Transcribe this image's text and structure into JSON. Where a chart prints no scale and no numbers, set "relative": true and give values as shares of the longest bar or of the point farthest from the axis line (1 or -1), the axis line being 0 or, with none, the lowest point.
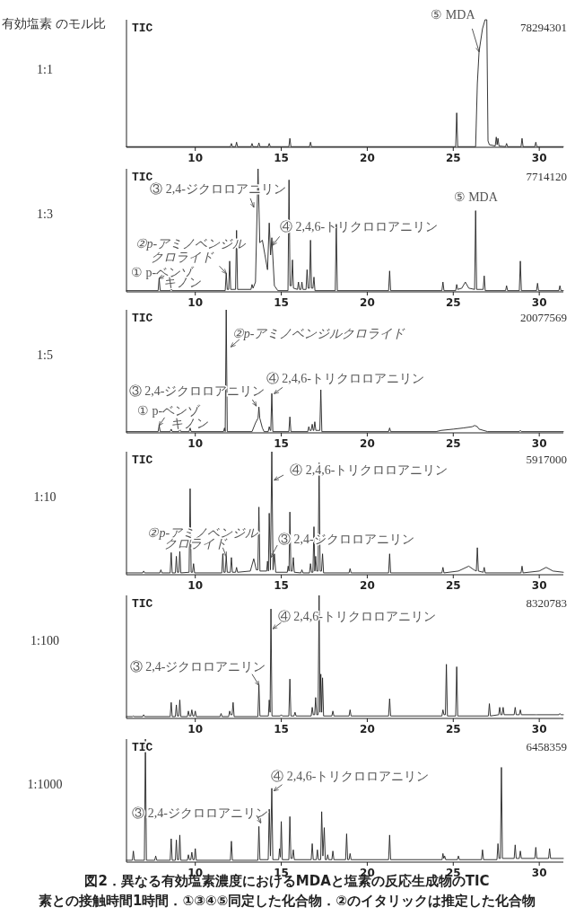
{
  "chart_data": [
    {
      "type": "line",
      "relative": true,
      "title": "有効塩素 のモル比",
      "subtitle": "1:1",
      "xlim": [
        6,
        31.4
      ],
      "xticks": [
        10,
        15,
        20,
        25,
        30
      ],
      "tick_labels": "x",
      "annotations": [
        "TIC",
        "78294301",
        {
          "text": "⑤ MDA",
          "x": 26.5,
          "y": 0.75
        }
      ],
      "series": [
        {
          "color": "#222222",
          "x": [
            6,
            12.04,
            12.1,
            12.16,
            12.34,
            12.4,
            12.46,
            13.24,
            13.3,
            13.36,
            13.64,
            13.7,
            13.76,
            14.24,
            14.3,
            14.36,
            15.44,
            15.5,
            15.56,
            16.64,
            16.7,
            16.76,
            25.14,
            25.2,
            25.26,
            26.3,
            26.4,
            26.5,
            26.7,
            26.85,
            26.95,
            27.02,
            27.1,
            27.44,
            27.5,
            27.55,
            27.6,
            27.66,
            28.04,
            28.1,
            28.16,
            28.94,
            29.0,
            29.06,
            29.74,
            29.8,
            29.86,
            31.4
          ],
          "values": [
            0.005,
            0.005,
            0.03,
            0.005,
            0.005,
            0.04,
            0.005,
            0.005,
            0.03,
            0.005,
            0.005,
            0.035,
            0.005,
            0.005,
            0.03,
            0.005,
            0.005,
            0.07,
            0.005,
            0.005,
            0.04,
            0.005,
            0.005,
            0.27,
            0.005,
            0.005,
            0.5,
            0.75,
            0.93,
            1,
            1,
            0.05,
            0.02,
            0.01,
            0.08,
            0.02,
            0.07,
            0.01,
            0.005,
            0.03,
            0.005,
            0.005,
            0.07,
            0.005,
            0.005,
            0.04,
            0.005,
            0.005
          ]
        }
      ]
    },
    {
      "type": "line",
      "relative": true,
      "subtitle": "1:3",
      "xlim": [
        6,
        31.4
      ],
      "xticks": [
        10,
        15,
        20,
        25,
        30
      ],
      "tick_labels": "x",
      "annotations": [
        "TIC",
        "7714120",
        {
          "text": "① p-ベンゾキノン",
          "x": 7.9,
          "y": 0.11
        },
        {
          "text": "②p-アミノベンジルクロライド",
          "x": 11.8,
          "y": 0.15
        },
        {
          "text": "③ 2,4-ジクロロアニリン",
          "x": 13.4,
          "y": 0.69
        },
        {
          "text": "④ 2,4,6-トリクロロアニリン",
          "x": 14.5,
          "y": 0.38
        },
        {
          "text": "⑤ MDA",
          "x": 26.3,
          "y": 0.66
        }
      ],
      "series": [
        {
          "color": "#222222",
          "x": [
            6,
            7.84,
            7.9,
            7.96,
            8.54,
            8.6,
            8.66,
            11.74,
            11.8,
            11.86,
            11.94,
            12.0,
            12.06,
            12.34,
            12.4,
            12.46,
            13.24,
            13.3,
            13.36,
            13.5,
            13.65,
            13.75,
            13.9,
            14.05,
            14.2,
            14.3,
            14.38,
            14.45,
            14.6,
            14.8,
            15.39,
            15.45,
            15.51,
            15.59,
            15.65,
            15.71,
            15.94,
            16.0,
            16.06,
            16.14,
            16.2,
            16.26,
            16.44,
            16.5,
            16.56,
            16.64,
            16.7,
            16.76,
            16.84,
            16.9,
            16.96,
            18.14,
            18.2,
            18.26,
            21.24,
            21.3,
            21.36,
            24.34,
            24.4,
            24.46,
            25.14,
            25.2,
            25.26,
            25.5,
            25.7,
            25.9,
            26.24,
            26.3,
            26.36,
            26.74,
            26.8,
            26.86,
            28.04,
            28.1,
            28.16,
            28.84,
            28.9,
            28.96,
            29.84,
            29.9,
            29.96,
            31.14,
            31.2,
            31.26,
            31.4
          ],
          "values": [
            0.01,
            0.01,
            0.11,
            0.01,
            0.01,
            0.03,
            0.01,
            0.01,
            0.15,
            0.02,
            0.02,
            0.25,
            0.02,
            0.02,
            0.5,
            0.02,
            0.02,
            0.06,
            0.03,
            0.08,
            1,
            0.4,
            0.42,
            0.3,
            0.18,
            0.56,
            0.3,
            0.44,
            0.05,
            0.01,
            0.01,
            0.91,
            0.05,
            0.05,
            0.26,
            0.03,
            0.02,
            0.08,
            0.02,
            0.02,
            0.08,
            0.02,
            0.02,
            0.18,
            0.03,
            0.03,
            0.42,
            0.03,
            0.03,
            0.12,
            0.01,
            0.01,
            0.55,
            0.01,
            0.01,
            0.17,
            0.01,
            0.01,
            0.08,
            0.01,
            0.01,
            0.06,
            0.02,
            0.03,
            0.08,
            0.03,
            0.02,
            0.66,
            0.02,
            0.02,
            0.13,
            0.01,
            0.01,
            0.05,
            0.01,
            0.01,
            0.25,
            0.01,
            0.01,
            0.07,
            0.01,
            0.01,
            0.05,
            0.01,
            0.01
          ]
        }
      ]
    },
    {
      "type": "line",
      "relative": true,
      "subtitle": "1:5",
      "xlim": [
        6,
        31.4
      ],
      "xticks": [
        10,
        15,
        20,
        25,
        30
      ],
      "tick_labels": "x",
      "annotations": [
        "TIC",
        "20077569",
        {
          "text": "②p-アミノベンジルクロライド",
          "x": 12.08,
          "y": 0.7
        },
        {
          "text": "③ 2,4-ジクロロアニリン",
          "x": 13.54,
          "y": 0.22
        },
        {
          "text": "④ 2,4,6-トリクロロアニリン",
          "x": 14.6,
          "y": 0.32
        },
        {
          "text": "① p-ベンゾキノン",
          "x": 7.9,
          "y": 0.06
        }
      ],
      "series": [
        {
          "color": "#222222",
          "x": [
            6,
            7.84,
            7.9,
            7.96,
            8.54,
            8.6,
            8.66,
            9.04,
            9.1,
            9.16,
            9.64,
            9.7,
            9.76,
            11.64,
            11.7,
            11.74,
            11.8,
            11.86,
            13.3,
            13.5,
            13.65,
            13.7,
            13.75,
            13.9,
            14.0,
            14.24,
            14.3,
            14.36,
            14.39,
            14.45,
            14.51,
            15.44,
            15.5,
            15.56,
            16.54,
            16.6,
            16.66,
            16.74,
            16.8,
            16.86,
            16.89,
            16.95,
            17.01,
            17.24,
            17.3,
            17.36,
            21.24,
            21.3,
            21.36,
            24.0,
            24.3,
            25.0,
            25.6,
            26.1,
            26.25,
            26.4,
            26.5,
            27.0,
            28.84,
            28.9,
            28.96,
            31.4
          ],
          "values": [
            0.01,
            0.01,
            0.06,
            0.01,
            0.01,
            0.03,
            0.01,
            0.01,
            0.03,
            0.01,
            0.01,
            0.04,
            0.01,
            0.01,
            0.04,
            0.01,
            1,
            0.01,
            0.01,
            0.08,
            0.12,
            0.21,
            0.12,
            0.04,
            0.01,
            0.01,
            0.05,
            0.02,
            0.02,
            0.32,
            0.01,
            0.01,
            0.13,
            0.01,
            0.01,
            0.05,
            0.02,
            0.02,
            0.07,
            0.02,
            0.02,
            0.09,
            0.02,
            0.02,
            0.35,
            0.01,
            0.01,
            0.04,
            0.01,
            0.01,
            0.02,
            0.03,
            0.04,
            0.05,
            0.06,
            0.05,
            0.03,
            0.01,
            0.01,
            0.02,
            0.01,
            0.01
          ]
        }
      ]
    },
    {
      "type": "line",
      "relative": true,
      "subtitle": "1:10",
      "xlim": [
        6,
        31.4
      ],
      "xticks": [
        10,
        15,
        20,
        25,
        30
      ],
      "tick_labels": "x",
      "annotations": [
        "TIC",
        "5917000",
        {
          "text": "④ 2,4,6-トリクロロアニリン",
          "x": 14.6,
          "y": 0.77
        },
        {
          "text": "②p-アミノベンジルクロライド",
          "x": 11.8,
          "y": 0.15
        },
        {
          "text": "③ 2,4-ジクロロアニリン",
          "x": 14.38,
          "y": 0.14
        }
      ],
      "series": [
        {
          "color": "#222222",
          "x": [
            6,
            6.94,
            7.0,
            7.06,
            7.94,
            8.0,
            8.06,
            8.54,
            8.6,
            8.66,
            8.84,
            8.9,
            8.96,
            9.04,
            9.1,
            9.16,
            9.64,
            9.7,
            9.76,
            9.84,
            9.9,
            9.96,
            11.54,
            11.6,
            11.66,
            11.74,
            11.8,
            11.86,
            12.04,
            12.1,
            12.16,
            12.34,
            12.4,
            12.46,
            13.2,
            13.4,
            13.55,
            13.64,
            13.7,
            13.76,
            14.15,
            14.2,
            14.25,
            14.3,
            14.37,
            14.45,
            14.52,
            14.6,
            14.68,
            15.35,
            15.4,
            15.45,
            15.5,
            15.56,
            15.64,
            15.7,
            15.76,
            16.14,
            16.2,
            16.26,
            16.64,
            16.7,
            16.76,
            16.84,
            16.9,
            16.95,
            17.0,
            17.06,
            17.14,
            17.2,
            17.26,
            17.34,
            17.4,
            17.46,
            18.94,
            19.0,
            19.06,
            21.24,
            21.3,
            21.36,
            24.34,
            24.4,
            24.46,
            25.3,
            25.9,
            26.2,
            26.34,
            26.4,
            26.46,
            26.74,
            26.8,
            26.86,
            28.94,
            29.0,
            29.06,
            30.0,
            30.4,
            30.8,
            31.4
          ],
          "values": [
            0.015,
            0.015,
            0.03,
            0.015,
            0.015,
            0.04,
            0.015,
            0.015,
            0.18,
            0.015,
            0.015,
            0.15,
            0.02,
            0.02,
            0.19,
            0.015,
            0.02,
            0.7,
            0.02,
            0.02,
            0.09,
            0.015,
            0.015,
            0.17,
            0.02,
            0.02,
            0.15,
            0.02,
            0.02,
            0.14,
            0.02,
            0.02,
            0.06,
            0.02,
            0.03,
            0.13,
            0.04,
            0.04,
            0.55,
            0.03,
            0.03,
            0.11,
            0.03,
            0.5,
            0.04,
            1,
            0.04,
            0.17,
            0.02,
            0.02,
            0.07,
            0.03,
            0.51,
            0.03,
            0.03,
            0.14,
            0.02,
            0.015,
            0.04,
            0.015,
            0.015,
            0.09,
            0.02,
            0.02,
            0.39,
            0.03,
            0.15,
            0.03,
            0.03,
            0.91,
            0.03,
            0.03,
            0.17,
            0.015,
            0.015,
            0.05,
            0.015,
            0.015,
            0.17,
            0.015,
            0.015,
            0.06,
            0.015,
            0.03,
            0.07,
            0.04,
            0.03,
            0.22,
            0.03,
            0.02,
            0.06,
            0.015,
            0.015,
            0.07,
            0.015,
            0.03,
            0.06,
            0.03,
            0.02
          ]
        }
      ]
    },
    {
      "type": "line",
      "relative": true,
      "subtitle": "1:100",
      "xlim": [
        6,
        31.4
      ],
      "xticks": [
        10,
        15,
        20,
        25,
        30
      ],
      "tick_labels": "x",
      "annotations": [
        "TIC",
        "8320783",
        {
          "text": "④ 2,4,6-トリクロロアニリン",
          "x": 14.52,
          "y": 0.73
        },
        {
          "text": "③ 2,4-ジクロロアニリン",
          "x": 13.7,
          "y": 0.27
        }
      ],
      "series": [
        {
          "color": "#222222",
          "x": [
            6,
            6.34,
            6.4,
            6.46,
            6.94,
            7.0,
            7.06,
            8.54,
            8.6,
            8.66,
            8.84,
            8.9,
            8.96,
            9.04,
            9.1,
            9.16,
            9.54,
            9.6,
            9.66,
            9.74,
            9.8,
            9.86,
            9.94,
            10.0,
            10.06,
            11.44,
            11.5,
            11.56,
            11.94,
            12.0,
            12.06,
            12.14,
            12.2,
            12.26,
            13.64,
            13.7,
            13.76,
            14.25,
            14.3,
            14.35,
            14.4,
            14.46,
            14.94,
            15.0,
            15.06,
            15.44,
            15.5,
            15.56,
            15.74,
            15.8,
            15.86,
            16.74,
            16.8,
            16.86,
            16.94,
            17.0,
            17.06,
            17.14,
            17.2,
            17.25,
            17.3,
            17.35,
            17.4,
            17.46,
            17.94,
            18.0,
            18.06,
            18.94,
            19.0,
            19.06,
            21.24,
            21.3,
            21.36,
            24.34,
            24.4,
            24.46,
            24.54,
            24.6,
            24.66,
            25.14,
            25.2,
            25.26,
            27.04,
            27.1,
            27.16,
            27.64,
            27.7,
            27.76,
            27.84,
            27.9,
            27.96,
            28.54,
            28.6,
            28.66,
            28.84,
            28.9,
            28.96,
            29.74,
            29.8,
            29.86,
            31.14,
            31.2,
            31.26,
            31.4
          ],
          "values": [
            0.015,
            0.015,
            0.02,
            0.015,
            0.015,
            0.03,
            0.015,
            0.015,
            0.13,
            0.015,
            0.015,
            0.11,
            0.02,
            0.02,
            0.15,
            0.015,
            0.015,
            0.06,
            0.02,
            0.02,
            0.07,
            0.02,
            0.02,
            0.06,
            0.015,
            0.015,
            0.04,
            0.015,
            0.015,
            0.06,
            0.03,
            0.03,
            0.13,
            0.015,
            0.015,
            0.27,
            0.02,
            0.02,
            0.15,
            0.05,
            0.89,
            0.02,
            0.02,
            0.03,
            0.02,
            0.02,
            0.32,
            0.02,
            0.02,
            0.05,
            0.02,
            0.02,
            0.09,
            0.03,
            0.03,
            0.17,
            0.03,
            0.03,
            1,
            0.05,
            0.36,
            0.05,
            0.33,
            0.02,
            0.02,
            0.06,
            0.02,
            0.02,
            0.07,
            0.02,
            0.02,
            0.16,
            0.02,
            0.02,
            0.07,
            0.03,
            0.03,
            0.44,
            0.02,
            0.02,
            0.42,
            0.02,
            0.02,
            0.12,
            0.02,
            0.03,
            0.09,
            0.03,
            0.03,
            0.09,
            0.03,
            0.03,
            0.09,
            0.03,
            0.03,
            0.07,
            0.03,
            0.03,
            0.03,
            0.03,
            0.03,
            0.04,
            0.03,
            0.03
          ]
        }
      ]
    },
    {
      "type": "line",
      "relative": true,
      "subtitle": "1:1000",
      "xlim": [
        6,
        31.4
      ],
      "xticks": [
        10,
        15,
        20,
        25,
        30
      ],
      "tick_labels": "x",
      "annotations": [
        "TIC",
        "6458359",
        {
          "text": "④ 2,4,6-トリクロロアニリン",
          "x": 14.58,
          "y": 0.58
        },
        {
          "text": "③ 2,4-ジクロロアニリン",
          "x": 13.81,
          "y": 0.32
        },
        "図2．異なる有効塩素濃度におけるMDAと塩素の反応生成物のTIC",
        "素との接触時間1時間．①③④⑤同定した化合物．②のイタリックは推定した化合物"
      ],
      "series": [
        {
          "color": "#222222",
          "x": [
            6,
            6.34,
            6.4,
            6.46,
            7.04,
            7.1,
            7.16,
            7.64,
            7.7,
            7.76,
            8.54,
            8.6,
            8.66,
            8.84,
            8.9,
            8.96,
            9.04,
            9.1,
            9.16,
            9.54,
            9.6,
            9.66,
            9.74,
            9.8,
            9.86,
            9.94,
            10.0,
            10.06,
            12.04,
            12.1,
            12.16,
            13.64,
            13.7,
            13.76,
            14.24,
            14.3,
            14.37,
            14.45,
            14.51,
            14.85,
            14.9,
            14.95,
            15.0,
            15.06,
            15.44,
            15.5,
            15.56,
            15.64,
            15.7,
            15.76,
            16.74,
            16.8,
            16.86,
            17.04,
            17.1,
            17.16,
            17.29,
            17.35,
            17.42,
            17.5,
            17.56,
            17.64,
            17.7,
            17.76,
            17.94,
            18.0,
            18.06,
            18.74,
            18.8,
            18.86,
            18.94,
            19.0,
            19.06,
            21.24,
            21.3,
            21.36,
            24.35,
            24.4,
            24.45,
            24.5,
            24.56,
            25.24,
            25.3,
            25.36,
            26.64,
            26.7,
            26.76,
            27.54,
            27.6,
            27.66,
            27.74,
            27.8,
            27.86,
            28.54,
            28.6,
            28.66,
            28.84,
            28.9,
            28.96,
            29.74,
            29.8,
            29.86,
            30.54,
            30.6,
            30.66,
            31.4
          ],
          "values": [
            0.015,
            0.015,
            0.09,
            0.015,
            0.015,
            1,
            0.015,
            0.015,
            0.05,
            0.015,
            0.015,
            0.19,
            0.015,
            0.015,
            0.18,
            0.02,
            0.02,
            0.22,
            0.015,
            0.015,
            0.06,
            0.02,
            0.02,
            0.08,
            0.02,
            0.02,
            0.11,
            0.015,
            0.015,
            0.17,
            0.015,
            0.015,
            0.29,
            0.02,
            0.02,
            0.43,
            0.05,
            0.6,
            0.02,
            0.02,
            0.11,
            0.04,
            0.33,
            0.02,
            0.02,
            0.37,
            0.03,
            0.03,
            0.1,
            0.02,
            0.02,
            0.15,
            0.02,
            0.02,
            0.1,
            0.02,
            0.02,
            0.41,
            0.05,
            0.28,
            0.02,
            0.02,
            0.06,
            0.02,
            0.02,
            0.09,
            0.02,
            0.02,
            0.23,
            0.02,
            0.02,
            0.07,
            0.02,
            0.02,
            0.22,
            0.02,
            0.02,
            0.07,
            0.03,
            0.05,
            0.02,
            0.02,
            0.05,
            0.02,
            0.02,
            0.1,
            0.02,
            0.02,
            0.15,
            0.03,
            0.03,
            0.77,
            0.03,
            0.03,
            0.14,
            0.03,
            0.03,
            0.09,
            0.03,
            0.03,
            0.12,
            0.03,
            0.03,
            0.11,
            0.03,
            0.03
          ]
        }
      ]
    }
  ]
}
